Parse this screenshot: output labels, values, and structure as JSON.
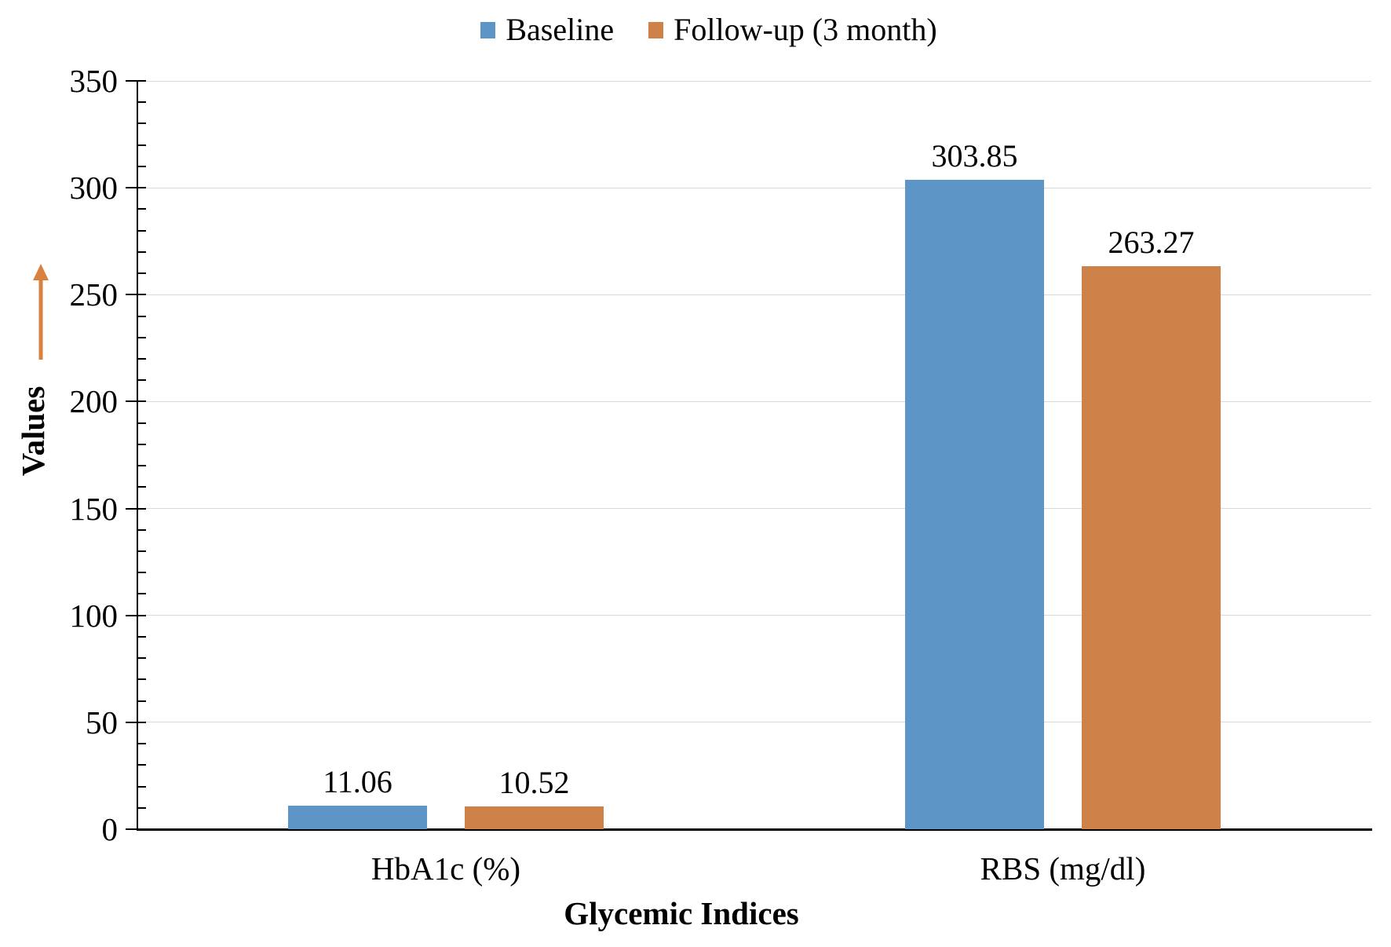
{
  "chart_data": {
    "type": "bar",
    "categories": [
      "HbA1c (%)",
      "RBS (mg/dl)"
    ],
    "series": [
      {
        "name": "Baseline",
        "color": "#5E95C7",
        "values": [
          11.06,
          303.85
        ]
      },
      {
        "name": "Follow-up (3 month)",
        "color": "#CE8249",
        "values": [
          10.52,
          263.27
        ]
      }
    ],
    "xlabel": "Glycemic Indices",
    "ylabel": "Values",
    "ylim": [
      0,
      350
    ],
    "y_major_step": 50,
    "y_minor_step": 10,
    "grid": "horizontal-major",
    "legend_position": "top-center",
    "data_labels": "values shown above each bar with 2 decimals"
  },
  "colors": {
    "gridline": "#D9D9D9",
    "axis": "#000000",
    "arrow": "#D9813F",
    "text": "#000000",
    "background": "#FFFFFF"
  }
}
